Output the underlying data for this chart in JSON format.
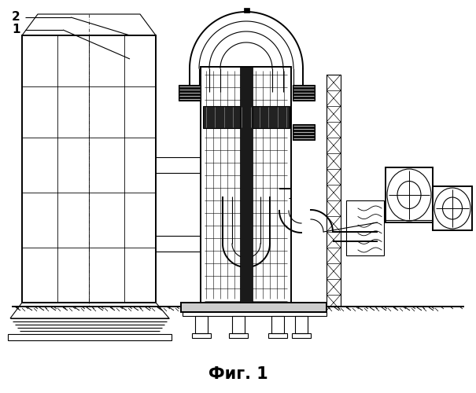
{
  "title": "Фиг. 1",
  "title_fontsize": 15,
  "title_fontweight": "bold",
  "label1": "1",
  "label2": "2",
  "bg_color": "#ffffff",
  "line_color": "#000000",
  "figure_width": 6.05,
  "figure_height": 5.0,
  "dpi": 100
}
